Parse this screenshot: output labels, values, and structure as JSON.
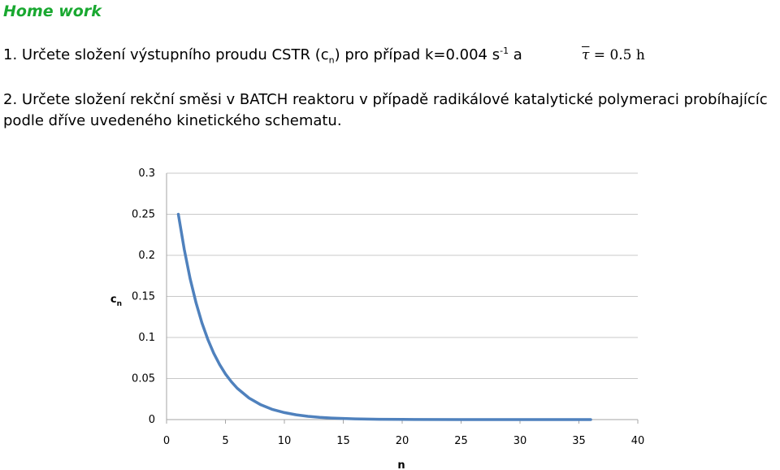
{
  "header": {
    "title": "Home work"
  },
  "task1": {
    "text_before": "1. Určete složení výstupního proudu CSTR (c",
    "sub": "n",
    "text_mid": ") pro případ k=0.004 s",
    "sup": "-1",
    "text_after": " a",
    "tau_symbol": "τ",
    "tau_rest": " = 0.5 h"
  },
  "task2": {
    "line1": "2. Určete složení rekční směsi v BATCH reaktoru v případě radikálové katalytické polymeraci probíhajícíc",
    "line2": "podle dříve uvedeného kinetického schematu."
  },
  "chart_data": {
    "type": "line",
    "title": "",
    "xlabel": "n",
    "ylabel_main": "c",
    "ylabel_sub": "n",
    "xlim": [
      0,
      40
    ],
    "ylim": [
      0,
      0.3
    ],
    "xticks": [
      0,
      5,
      10,
      15,
      20,
      25,
      30,
      35,
      40
    ],
    "yticks": [
      0,
      0.05,
      0.1,
      0.15,
      0.2,
      0.25,
      0.3
    ],
    "grid": "horizontal",
    "line_color": "#4f81bd",
    "series": [
      {
        "x": [
          1,
          1.5,
          2,
          2.5,
          3,
          3.5,
          4,
          4.5,
          5,
          5.5,
          6,
          7,
          8,
          9,
          10,
          11,
          12,
          13,
          14,
          16,
          18,
          20,
          25,
          30,
          36
        ],
        "values": [
          0.25,
          0.2071,
          0.1716,
          0.1422,
          0.1178,
          0.0976,
          0.0809,
          0.067,
          0.0555,
          0.046,
          0.0381,
          0.0262,
          0.018,
          0.0123,
          0.0085,
          0.0058,
          0.004,
          0.0027,
          0.0019,
          0.0009,
          0.0004,
          0.0002,
          0.0,
          0.0,
          0.0
        ]
      }
    ]
  }
}
